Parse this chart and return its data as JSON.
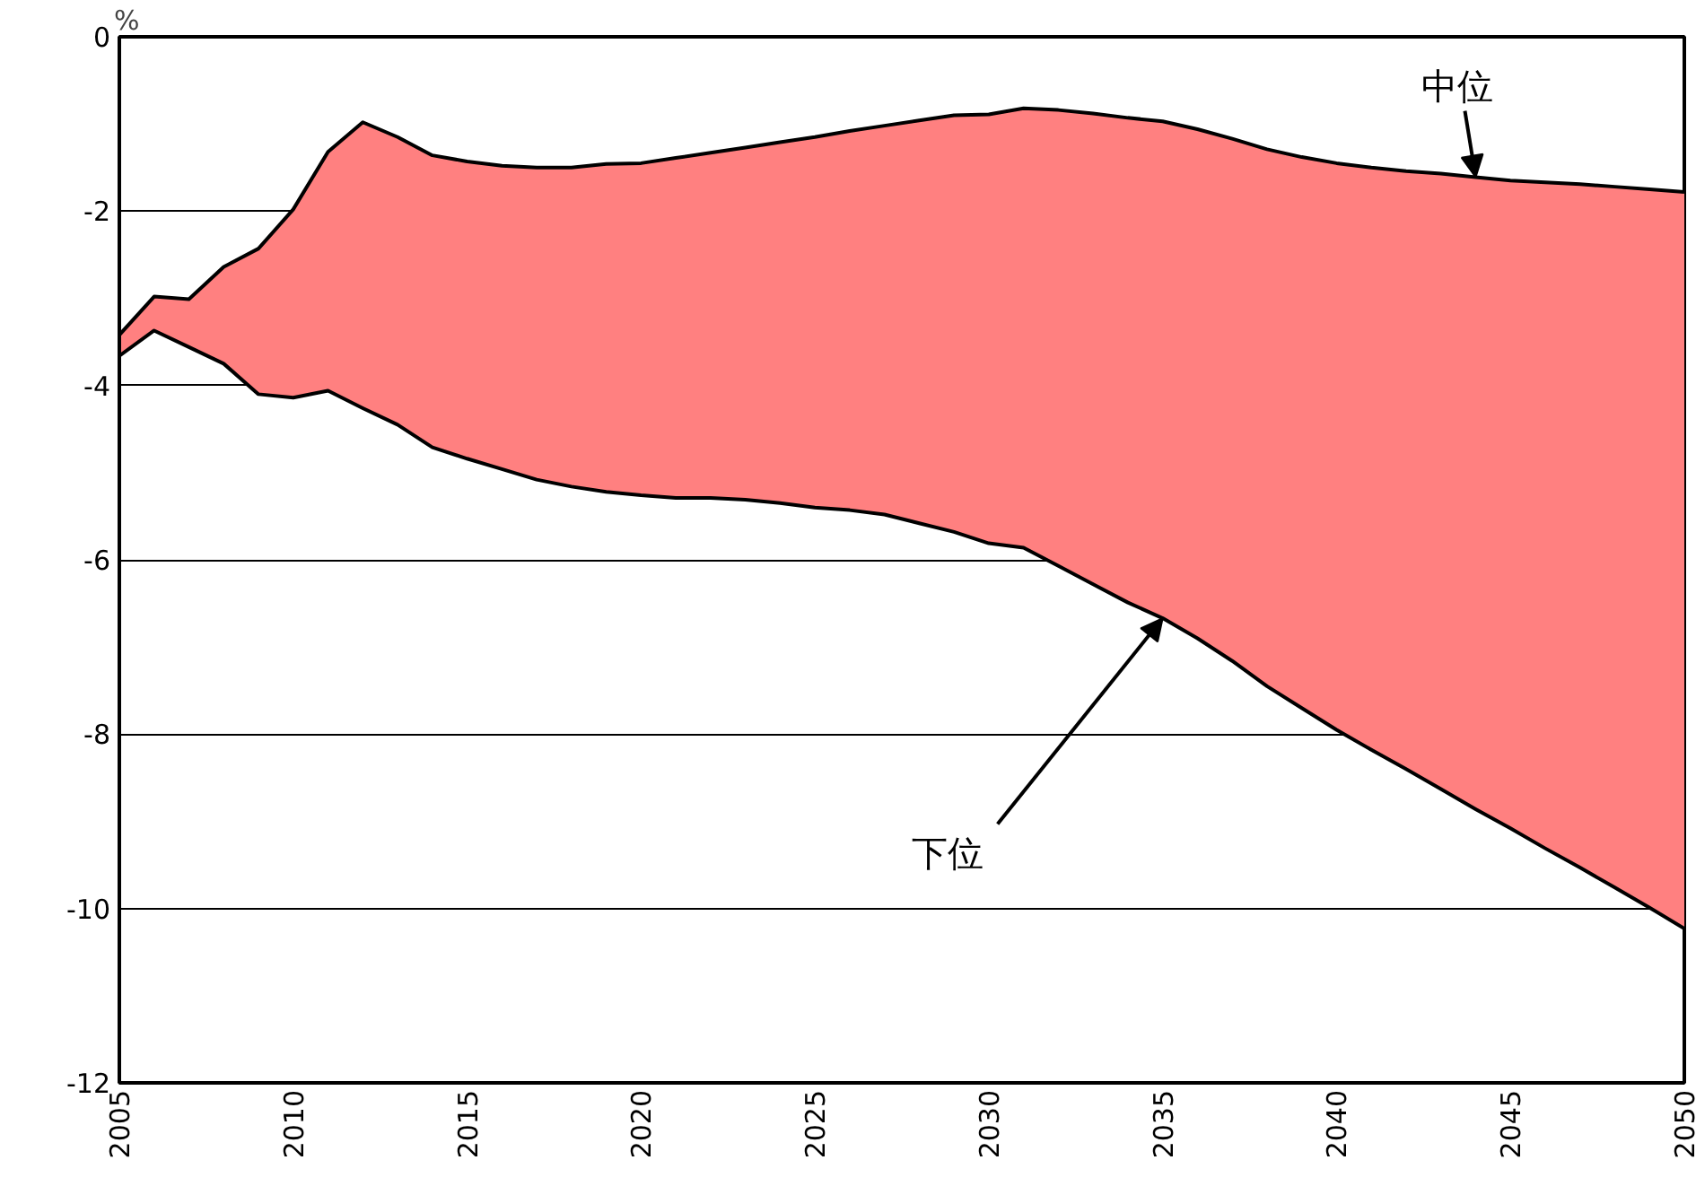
{
  "chart_data": {
    "type": "line",
    "ylabel": "%",
    "x": [
      2005,
      2006,
      2007,
      2008,
      2009,
      2010,
      2011,
      2012,
      2013,
      2014,
      2015,
      2016,
      2017,
      2018,
      2019,
      2020,
      2021,
      2022,
      2023,
      2024,
      2025,
      2026,
      2027,
      2028,
      2029,
      2030,
      2031,
      2032,
      2033,
      2034,
      2035,
      2036,
      2037,
      2038,
      2039,
      2040,
      2041,
      2042,
      2043,
      2044,
      2045,
      2046,
      2047,
      2048,
      2049,
      2050
    ],
    "series": [
      {
        "color": "#000000",
        "values": [
          -3.42,
          -2.98,
          -3.01,
          -2.64,
          -2.43,
          -1.98,
          -1.32,
          -0.98,
          -1.15,
          -1.36,
          -1.43,
          -1.48,
          -1.5,
          -1.5,
          -1.46,
          -1.45,
          -1.39,
          -1.33,
          -1.27,
          -1.21,
          -1.15,
          -1.08,
          -1.02,
          -0.96,
          -0.9,
          -0.89,
          -0.82,
          -0.84,
          -0.88,
          -0.93,
          -0.97,
          -1.06,
          -1.17,
          -1.29,
          -1.38,
          -1.45,
          -1.5,
          -1.54,
          -1.57,
          -1.61,
          -1.65,
          -1.67,
          -1.69,
          -1.72,
          -1.75,
          -1.78
        ],
        "upper": [
          -3.42,
          -2.98,
          -3.01,
          -2.64,
          -2.43,
          -1.98,
          -1.32,
          -0.98,
          -1.15,
          -1.36,
          -1.43,
          -1.48,
          -1.5,
          -1.5,
          -1.46,
          -1.45,
          -1.39,
          -1.33,
          -1.27,
          -1.21,
          -1.15,
          -1.08,
          -1.02,
          -0.96,
          -0.9,
          -0.89,
          -0.82,
          -0.84,
          -0.88,
          -0.93,
          -0.97,
          -1.06,
          -1.17,
          -1.29,
          -1.38,
          -1.45,
          -1.5,
          -1.54,
          -1.57,
          -1.61,
          -1.65,
          -1.67,
          -1.69,
          -1.72,
          -1.75,
          -1.78
        ],
        "lower": [
          -3.66,
          -3.37,
          -3.56,
          -3.75,
          -4.1,
          -4.14,
          -4.06,
          -4.26,
          -4.45,
          -4.71,
          -4.84,
          -4.96,
          -5.08,
          -5.16,
          -5.22,
          -5.26,
          -5.29,
          -5.29,
          -5.31,
          -5.35,
          -5.4,
          -5.43,
          -5.48,
          -5.58,
          -5.68,
          -5.81,
          -5.86,
          -6.07,
          -6.28,
          -6.49,
          -6.67,
          -6.9,
          -7.16,
          -7.45,
          -7.7,
          -7.95,
          -8.18,
          -8.4,
          -8.63,
          -8.86,
          -9.08,
          -9.31,
          -9.53,
          -9.76,
          -9.99,
          -10.23
        ]
      },
      {
        "type": "line",
        "color": "#000000",
        "values": [
          -3.66,
          -3.37,
          -3.56,
          -3.75,
          -4.1,
          -4.14,
          -4.06,
          -4.26,
          -4.45,
          -4.71,
          -4.84,
          -4.96,
          -5.08,
          -5.16,
          -5.22,
          -5.26,
          -5.29,
          -5.29,
          -5.31,
          -5.35,
          -5.4,
          -5.43,
          -5.48,
          -5.58,
          -5.68,
          -5.81,
          -5.86,
          -6.07,
          -6.28,
          -6.49,
          -6.67,
          -6.9,
          -7.16,
          -7.45,
          -7.7,
          -7.95,
          -8.18,
          -8.4,
          -8.63,
          -8.86,
          -9.08,
          -9.31,
          -9.53,
          -9.76,
          -9.99,
          -10.23
        ]
      }
    ],
    "annotations": [
      {
        "text": "中位",
        "x": 2044,
        "y": -1.61
      },
      {
        "text": "下位",
        "x": 2035,
        "y": -6.67
      }
    ],
    "xlim": [
      2005,
      2050
    ],
    "xticks": [
      2005,
      2010,
      2015,
      2020,
      2025,
      2030,
      2035,
      2040,
      2045,
      2050
    ],
    "ylim": [
      -12,
      0
    ],
    "yticks": [
      0,
      -2,
      -4,
      -6,
      -8,
      -10,
      -12
    ],
    "grid": "y",
    "line_style": "solid",
    "marker": "none"
  }
}
